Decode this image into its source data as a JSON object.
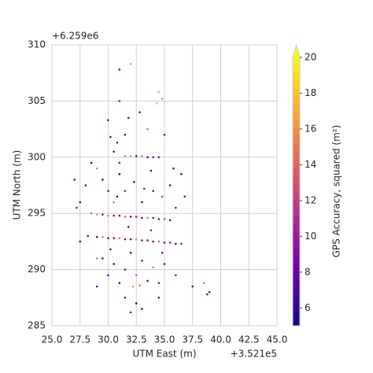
{
  "chart_data": {
    "type": "scatter",
    "x_label": "UTM East (m)",
    "y_label": "UTM North (m)",
    "x_offset": "+3.521e5",
    "y_offset": "+6.259e6",
    "xlim": [
      25,
      45
    ],
    "ylim": [
      285,
      310
    ],
    "xticks": [
      {
        "value": 25,
        "label": "25.0"
      },
      {
        "value": 27.5,
        "label": "27.5"
      },
      {
        "value": 30,
        "label": "30.0"
      },
      {
        "value": 32.5,
        "label": "32.5"
      },
      {
        "value": 35,
        "label": "35.0"
      },
      {
        "value": 37.5,
        "label": "37.5"
      },
      {
        "value": 40,
        "label": "40.0"
      },
      {
        "value": 42.5,
        "label": "42.5"
      },
      {
        "value": 45,
        "label": "45.0"
      }
    ],
    "yticks": [
      285,
      290,
      295,
      300,
      305,
      310
    ],
    "grid": true,
    "colormap": "plasma",
    "clim": [
      5,
      20
    ],
    "colorbar_extend": "max",
    "colorbar_label": "GPS Accuracy, squared (m²)",
    "colorbar_ticks": [
      6,
      8,
      10,
      12,
      14,
      16,
      18,
      20
    ],
    "points": [
      [
        30.2,
        301.8,
        8
      ],
      [
        30.5,
        300.5,
        7
      ],
      [
        31.0,
        299.5,
        9
      ],
      [
        31.5,
        300.1,
        15
      ],
      [
        32.0,
        300.1,
        16
      ],
      [
        32.5,
        300.1,
        8
      ],
      [
        33.0,
        300.1,
        14
      ],
      [
        33.5,
        300.0,
        7
      ],
      [
        34.0,
        300.0,
        9
      ],
      [
        34.5,
        300.0,
        8
      ],
      [
        29.0,
        299.0,
        15
      ],
      [
        29.5,
        298.0,
        7
      ],
      [
        30.0,
        297.0,
        8
      ],
      [
        30.8,
        296.5,
        6
      ],
      [
        31.5,
        297.0,
        10
      ],
      [
        32.3,
        297.8,
        7
      ],
      [
        33.2,
        297.2,
        9
      ],
      [
        34.0,
        297.0,
        8
      ],
      [
        34.8,
        296.5,
        12
      ],
      [
        35.5,
        297.5,
        7
      ],
      [
        28.5,
        295.0,
        14
      ],
      [
        29.0,
        294.9,
        16
      ],
      [
        29.5,
        294.9,
        8
      ],
      [
        30.0,
        294.8,
        15
      ],
      [
        30.5,
        294.8,
        9
      ],
      [
        31.0,
        294.8,
        7
      ],
      [
        31.5,
        294.7,
        14
      ],
      [
        32.0,
        294.7,
        8
      ],
      [
        32.5,
        294.7,
        10
      ],
      [
        33.0,
        294.6,
        7
      ],
      [
        33.5,
        294.6,
        15
      ],
      [
        34.0,
        294.6,
        8
      ],
      [
        34.5,
        294.5,
        9
      ],
      [
        35.0,
        294.5,
        13
      ],
      [
        35.5,
        294.4,
        7
      ],
      [
        29.0,
        292.9,
        8
      ],
      [
        29.5,
        292.9,
        15
      ],
      [
        30.0,
        292.8,
        7
      ],
      [
        30.5,
        292.8,
        9
      ],
      [
        31.0,
        292.8,
        14
      ],
      [
        31.5,
        292.7,
        8
      ],
      [
        32.0,
        292.7,
        7
      ],
      [
        32.5,
        292.7,
        16
      ],
      [
        33.0,
        292.6,
        8
      ],
      [
        33.5,
        292.6,
        9
      ],
      [
        34.0,
        292.5,
        7
      ],
      [
        34.5,
        292.5,
        14
      ],
      [
        35.0,
        292.4,
        8
      ],
      [
        35.5,
        292.4,
        10
      ],
      [
        36.0,
        292.3,
        7
      ],
      [
        36.5,
        292.3,
        9
      ],
      [
        29.5,
        291.0,
        8
      ],
      [
        30.5,
        290.5,
        7
      ],
      [
        31.5,
        290.0,
        9
      ],
      [
        32.0,
        291.5,
        6
      ],
      [
        33.0,
        290.8,
        8
      ],
      [
        34.0,
        290.2,
        15
      ],
      [
        35.0,
        290.5,
        7
      ],
      [
        30.0,
        289.5,
        8
      ],
      [
        31.0,
        288.8,
        7
      ],
      [
        32.2,
        288.5,
        16
      ],
      [
        32.8,
        288.6,
        15
      ],
      [
        33.5,
        289.0,
        8
      ],
      [
        34.5,
        288.8,
        9
      ],
      [
        29.0,
        288.5,
        7
      ],
      [
        31.5,
        287.5,
        8
      ],
      [
        32.5,
        287.0,
        6
      ],
      [
        33.0,
        286.5,
        7
      ],
      [
        32.0,
        286.2,
        8
      ],
      [
        34.5,
        287.5,
        7
      ],
      [
        36.0,
        289.5,
        8
      ],
      [
        37.5,
        288.5,
        7
      ],
      [
        38.5,
        288.8,
        15
      ],
      [
        39.0,
        288.0,
        8
      ],
      [
        38.8,
        287.8,
        7
      ],
      [
        32.0,
        308.3,
        16
      ],
      [
        31.0,
        307.8,
        8
      ],
      [
        34.5,
        305.8,
        17
      ],
      [
        34.8,
        305.2,
        16
      ],
      [
        34.3,
        304.8,
        18
      ],
      [
        31.0,
        305.0,
        9
      ],
      [
        32.8,
        304.0,
        7
      ],
      [
        30.0,
        303.3,
        8
      ],
      [
        31.8,
        303.5,
        8
      ],
      [
        33.5,
        302.5,
        15
      ],
      [
        35.0,
        302.0,
        8
      ],
      [
        31.5,
        302.0,
        7
      ],
      [
        30.8,
        301.3,
        9
      ],
      [
        27.0,
        298.0,
        8
      ],
      [
        27.5,
        296.0,
        7
      ],
      [
        28.0,
        297.5,
        8
      ],
      [
        27.2,
        295.5,
        9
      ],
      [
        28.5,
        299.5,
        7
      ],
      [
        28.2,
        293.0,
        8
      ],
      [
        27.5,
        292.5,
        7
      ],
      [
        29.0,
        291.0,
        15
      ],
      [
        35.8,
        299.0,
        8
      ],
      [
        36.5,
        298.5,
        7
      ],
      [
        36.0,
        295.5,
        9
      ],
      [
        36.8,
        296.5,
        8
      ],
      [
        30.5,
        296.0,
        14
      ],
      [
        33.0,
        296.0,
        7
      ],
      [
        31.8,
        293.8,
        8
      ],
      [
        33.8,
        293.5,
        9
      ],
      [
        30.2,
        291.8,
        7
      ],
      [
        34.8,
        291.5,
        8
      ],
      [
        32.5,
        289.5,
        14
      ],
      [
        31.0,
        298.5,
        6
      ],
      [
        33.8,
        298.8,
        7
      ]
    ]
  }
}
